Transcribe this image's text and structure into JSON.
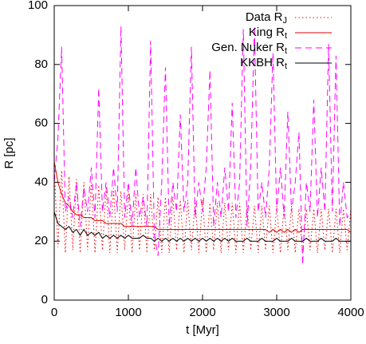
{
  "chart_data": {
    "type": "line",
    "xlabel": "t [Myr]",
    "ylabel": "R [pc]",
    "xlim": [
      0,
      4000
    ],
    "ylim": [
      0,
      100
    ],
    "xticks": [
      0,
      1000,
      2000,
      3000,
      4000
    ],
    "yticks": [
      0,
      20,
      40,
      60,
      80,
      100
    ],
    "legend": "top-right",
    "x": [
      0,
      50,
      100,
      150,
      200,
      250,
      300,
      350,
      400,
      450,
      500,
      550,
      600,
      650,
      700,
      750,
      800,
      850,
      900,
      950,
      1000,
      1050,
      1100,
      1150,
      1200,
      1250,
      1300,
      1350,
      1400,
      1450,
      1500,
      1550,
      1600,
      1650,
      1700,
      1750,
      1800,
      1850,
      1900,
      1950,
      2000,
      2050,
      2100,
      2150,
      2200,
      2250,
      2300,
      2350,
      2400,
      2450,
      2500,
      2550,
      2600,
      2650,
      2700,
      2750,
      2800,
      2850,
      2900,
      2950,
      3000,
      3050,
      3100,
      3150,
      3200,
      3250,
      3300,
      3350,
      3400,
      3450,
      3500,
      3550,
      3600,
      3650,
      3700,
      3750,
      3800,
      3850,
      3900,
      3950,
      4000
    ],
    "series": [
      {
        "name": "Data RJ",
        "color": "#ff0000",
        "dash": "dotted",
        "values": [
          45,
          18,
          44,
          16,
          42,
          17,
          41,
          16,
          40,
          17,
          40,
          16,
          39,
          17,
          38,
          16,
          38,
          16,
          37,
          17,
          37,
          16,
          36,
          17,
          36,
          16,
          36,
          17,
          35,
          16,
          35,
          16,
          35,
          17,
          34,
          16,
          34,
          17,
          34,
          16,
          34,
          16,
          33,
          17,
          33,
          16,
          33,
          17,
          33,
          16,
          33,
          16,
          32,
          17,
          32,
          16,
          32,
          17,
          32,
          16,
          32,
          16,
          32,
          17,
          32,
          16,
          31,
          16,
          31,
          17,
          31,
          16,
          31,
          17,
          31,
          16,
          31,
          16,
          31,
          17,
          31
        ]
      },
      {
        "name": "King Rt",
        "color": "#e00000",
        "dash": "solid",
        "values": [
          47,
          40,
          36,
          33,
          32,
          30,
          29,
          29,
          28,
          28,
          28,
          27,
          27,
          27,
          26,
          26,
          26,
          26,
          26,
          25,
          25,
          25,
          25,
          25,
          25,
          25,
          25,
          25,
          24,
          24,
          24,
          24,
          24,
          24,
          24,
          24,
          24,
          24,
          24,
          24,
          24,
          24,
          24,
          24,
          24,
          24,
          24,
          24,
          24,
          24,
          24,
          24,
          24,
          24,
          24,
          24,
          24,
          24,
          23,
          24,
          23,
          24,
          23,
          24,
          23,
          24,
          23,
          24,
          24,
          24,
          24,
          24,
          24,
          24,
          24,
          24,
          24,
          24,
          24,
          24,
          23
        ]
      },
      {
        "name": "Gen. Nuker Rt",
        "color": "#ff00ff",
        "dash": "dashed",
        "values": [
          40,
          55,
          86,
          30,
          35,
          28,
          40,
          25,
          38,
          30,
          45,
          28,
          72,
          30,
          40,
          28,
          45,
          30,
          93,
          28,
          40,
          25,
          45,
          28,
          35,
          25,
          88,
          22,
          15,
          40,
          79,
          25,
          40,
          30,
          63,
          30,
          40,
          86,
          28,
          40,
          30,
          45,
          78,
          25,
          40,
          28,
          45,
          30,
          67,
          28,
          40,
          92,
          25,
          45,
          93,
          30,
          40,
          28,
          45,
          84,
          30,
          45,
          28,
          64,
          30,
          40,
          57,
          12,
          40,
          30,
          68,
          28,
          45,
          30,
          87,
          30,
          83,
          25,
          40,
          28,
          30
        ]
      },
      {
        "name": "KKBH Rt",
        "color": "#000000",
        "dash": "solid",
        "values": [
          30,
          26,
          25,
          24,
          25,
          23,
          24,
          22,
          24,
          22,
          23,
          22,
          23,
          21,
          22,
          21,
          22,
          21,
          22,
          21,
          22,
          21,
          21,
          21,
          22,
          21,
          21,
          20,
          21,
          20,
          21,
          20,
          21,
          20,
          21,
          20,
          21,
          20,
          21,
          20,
          21,
          20,
          21,
          20,
          21,
          20,
          21,
          20,
          21,
          20,
          20,
          20,
          21,
          20,
          20,
          20,
          21,
          20,
          20,
          20,
          21,
          20,
          20,
          20,
          21,
          20,
          20,
          20,
          21,
          20,
          20,
          20,
          21,
          20,
          20,
          20,
          21,
          20,
          20,
          20,
          20
        ]
      }
    ]
  }
}
